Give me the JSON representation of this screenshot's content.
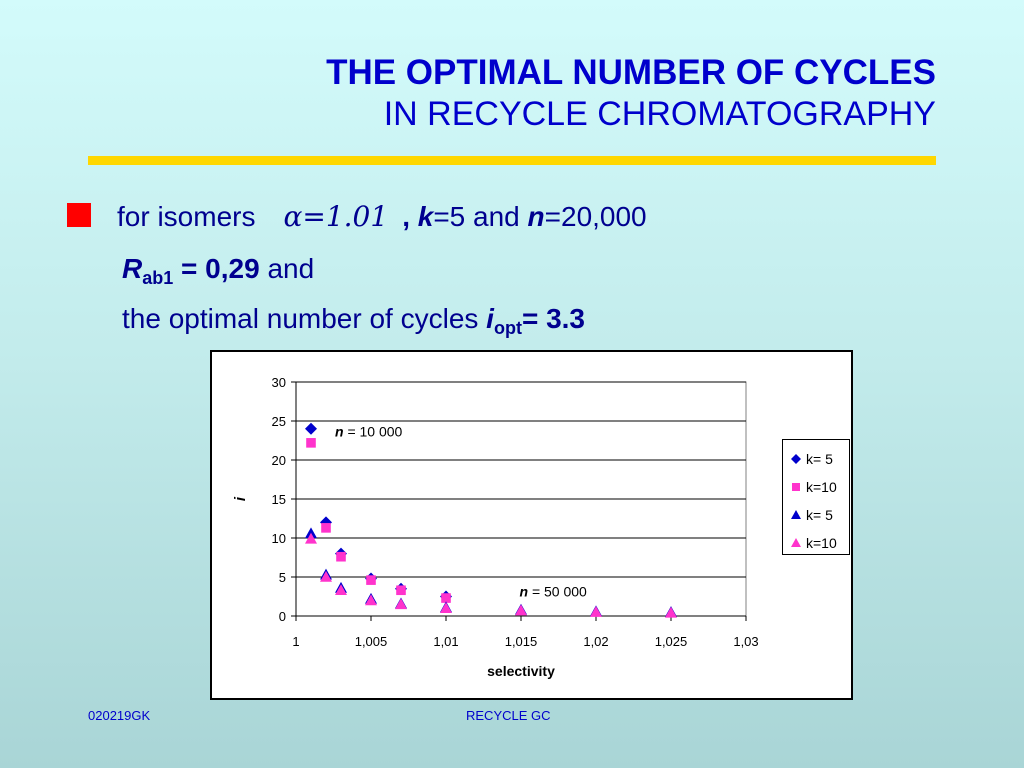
{
  "title": {
    "line1": "THE OPTIMAL NUMBER OF CYCLES",
    "line2": "IN RECYCLE CHROMATOGRAPHY"
  },
  "bullet": {
    "l1_a": "for isomers",
    "alpha_expr": "α=1.01",
    "l1_b": ", ",
    "k_var": "k",
    "l1_c": "=5 and ",
    "n_var": "n",
    "l1_d": "=20,000",
    "r_var": "R",
    "r_sub": "ab1",
    "r_val": " = 0,29",
    "l2_end": " and",
    "l3_a": "the optimal number of cycles ",
    "i_var": "i",
    "i_sub": "opt",
    "i_val": "= 3.3"
  },
  "footer": {
    "left": "020219GK",
    "center": "RECYCLE GC"
  },
  "colors": {
    "title": "#0000cc",
    "body_text": "#00008f",
    "rule": "#ffd700",
    "bullet": "#ff0000",
    "series_blue": "#0000cc",
    "series_magenta": "#ff33cc"
  },
  "chart_data": {
    "type": "scatter",
    "xlabel": "selectivity",
    "ylabel": "i",
    "xlim": [
      1,
      1.03
    ],
    "ylim": [
      0,
      30
    ],
    "x_ticks": [
      "1",
      "1,005",
      "1,01",
      "1,015",
      "1,02",
      "1,025",
      "1,03"
    ],
    "y_ticks": [
      "0",
      "5",
      "10",
      "15",
      "20",
      "25",
      "30"
    ],
    "grid": "horizontal",
    "legend_position": "right",
    "annotations": [
      {
        "var": "n",
        "text": " = 10 000",
        "x": 1.0026,
        "y": 23
      },
      {
        "var": "n",
        "text": " = 50 000",
        "x": 1.0149,
        "y": 2.5
      }
    ],
    "series": [
      {
        "name": "k= 5",
        "marker": "diamond",
        "color": "#0000cc",
        "points": [
          [
            1.001,
            24
          ],
          [
            1.002,
            12
          ],
          [
            1.003,
            8
          ],
          [
            1.005,
            4.8
          ],
          [
            1.007,
            3.5
          ],
          [
            1.01,
            2.5
          ]
        ]
      },
      {
        "name": "k=10",
        "marker": "square",
        "color": "#ff33cc",
        "points": [
          [
            1.001,
            22.2
          ],
          [
            1.002,
            11.3
          ],
          [
            1.003,
            7.6
          ],
          [
            1.005,
            4.6
          ],
          [
            1.007,
            3.3
          ],
          [
            1.01,
            2.3
          ]
        ]
      },
      {
        "name": "k= 5",
        "marker": "triangle",
        "color": "#0000cc",
        "points": [
          [
            1.001,
            10.6
          ],
          [
            1.002,
            5.3
          ],
          [
            1.003,
            3.6
          ],
          [
            1.005,
            2.2
          ],
          [
            1.007,
            1.6
          ],
          [
            1.01,
            1.1
          ],
          [
            1.015,
            0.8
          ],
          [
            1.02,
            0.6
          ],
          [
            1.025,
            0.5
          ]
        ]
      },
      {
        "name": "k=10",
        "marker": "triangle",
        "color": "#ff33cc",
        "points": [
          [
            1.001,
            9.9
          ],
          [
            1.002,
            5.0
          ],
          [
            1.003,
            3.3
          ],
          [
            1.005,
            2.0
          ],
          [
            1.007,
            1.5
          ],
          [
            1.01,
            1.0
          ],
          [
            1.015,
            0.7
          ],
          [
            1.02,
            0.5
          ],
          [
            1.025,
            0.4
          ]
        ]
      }
    ]
  }
}
